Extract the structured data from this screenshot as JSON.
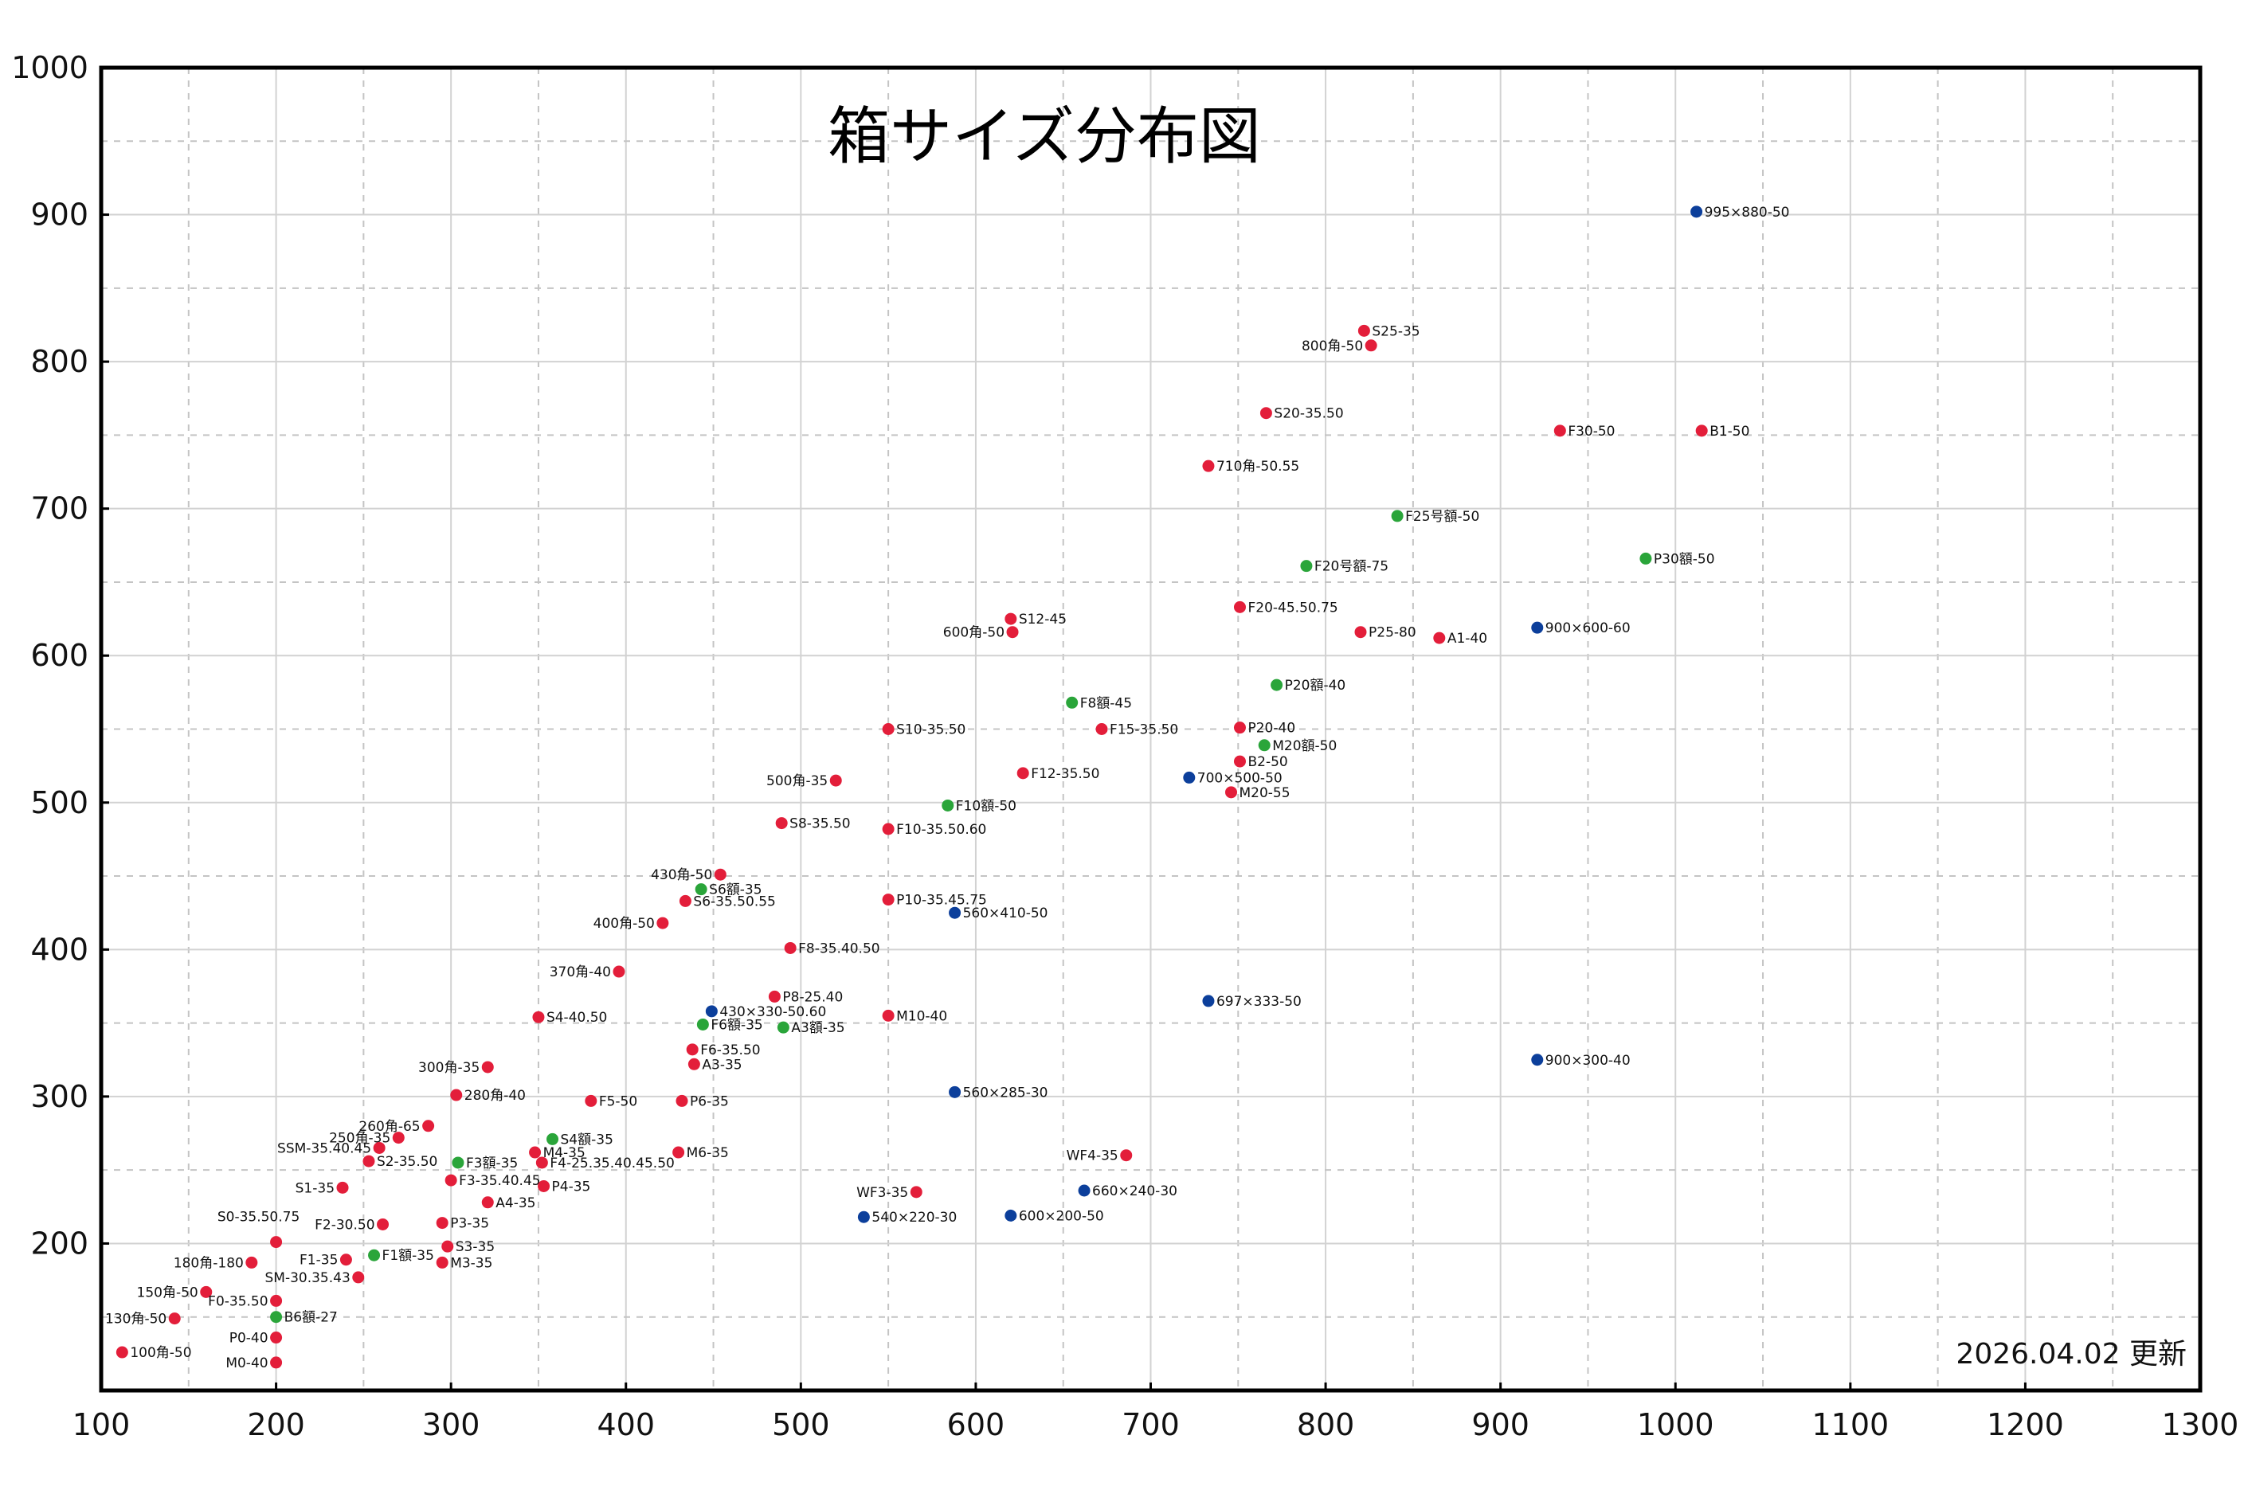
{
  "chart_data": {
    "type": "scatter",
    "title": "箱サイズ分布図",
    "annotation": "2026.04.02 更新",
    "xlabel": "",
    "ylabel": "",
    "xlim": [
      100,
      1300
    ],
    "ylim": [
      100,
      1000
    ],
    "x_ticks": [
      100,
      200,
      300,
      400,
      500,
      600,
      700,
      800,
      900,
      1000,
      1100,
      1200,
      1300
    ],
    "y_ticks": [
      200,
      300,
      400,
      500,
      600,
      700,
      800,
      900,
      1000
    ],
    "grid": "solid every 100, dashed every 50",
    "colors": {
      "red": "#e31e3a",
      "green": "#2aa53a",
      "blue": "#0c3f9b"
    },
    "points": [
      {
        "label": "100角-50",
        "x": 112,
        "y": 126,
        "color": "red",
        "label_pos": "right"
      },
      {
        "label": "130角-50",
        "x": 142,
        "y": 149,
        "color": "red",
        "label_pos": "left"
      },
      {
        "label": "150角-50",
        "x": 160,
        "y": 167,
        "color": "red",
        "label_pos": "left"
      },
      {
        "label": "180角-180",
        "x": 186,
        "y": 187,
        "color": "red",
        "label_pos": "left"
      },
      {
        "label": "S0-35.50.75",
        "x": 200,
        "y": 201,
        "color": "red",
        "label_pos": "above"
      },
      {
        "label": "F0-35.50",
        "x": 200,
        "y": 161,
        "color": "red",
        "label_pos": "left"
      },
      {
        "label": "P0-40",
        "x": 200,
        "y": 136,
        "color": "red",
        "label_pos": "left"
      },
      {
        "label": "M0-40",
        "x": 200,
        "y": 119,
        "color": "red",
        "label_pos": "left"
      },
      {
        "label": "F1-35",
        "x": 240,
        "y": 189,
        "color": "red",
        "label_pos": "left"
      },
      {
        "label": "SM-30.35.43",
        "x": 247,
        "y": 177,
        "color": "red",
        "label_pos": "left"
      },
      {
        "label": "S1-35",
        "x": 238,
        "y": 238,
        "color": "red",
        "label_pos": "left"
      },
      {
        "label": "F2-30.50",
        "x": 261,
        "y": 213,
        "color": "red",
        "label_pos": "left"
      },
      {
        "label": "260角-65",
        "x": 287,
        "y": 280,
        "color": "red",
        "label_pos": "left"
      },
      {
        "label": "250角-35",
        "x": 270,
        "y": 272,
        "color": "red",
        "label_pos": "left"
      },
      {
        "label": "SSM-35.40.45",
        "x": 259,
        "y": 265,
        "color": "red",
        "label_pos": "left"
      },
      {
        "label": "S2-35.50",
        "x": 253,
        "y": 256,
        "color": "red",
        "label_pos": "right"
      },
      {
        "label": "300角-35",
        "x": 321,
        "y": 320,
        "color": "red",
        "label_pos": "left"
      },
      {
        "label": "280角-40",
        "x": 303,
        "y": 301,
        "color": "red",
        "label_pos": "right"
      },
      {
        "label": "F5-50",
        "x": 380,
        "y": 297,
        "color": "red",
        "label_pos": "right"
      },
      {
        "label": "P3-35",
        "x": 295,
        "y": 214,
        "color": "red",
        "label_pos": "right"
      },
      {
        "label": "S3-35",
        "x": 298,
        "y": 198,
        "color": "red",
        "label_pos": "right"
      },
      {
        "label": "M3-35",
        "x": 295,
        "y": 187,
        "color": "red",
        "label_pos": "right"
      },
      {
        "label": "F3-35.40.45",
        "x": 300,
        "y": 243,
        "color": "red",
        "label_pos": "right"
      },
      {
        "label": "A4-35",
        "x": 321,
        "y": 228,
        "color": "red",
        "label_pos": "right"
      },
      {
        "label": "M4-35",
        "x": 348,
        "y": 262,
        "color": "red",
        "label_pos": "right"
      },
      {
        "label": "F4-25.35.40.45.50",
        "x": 352,
        "y": 255,
        "color": "red",
        "label_pos": "right"
      },
      {
        "label": "P4-35",
        "x": 353,
        "y": 239,
        "color": "red",
        "label_pos": "right"
      },
      {
        "label": "M6-35",
        "x": 430,
        "y": 262,
        "color": "red",
        "label_pos": "right"
      },
      {
        "label": "P6-35",
        "x": 432,
        "y": 297,
        "color": "red",
        "label_pos": "right"
      },
      {
        "label": "A3-35",
        "x": 439,
        "y": 322,
        "color": "red",
        "label_pos": "right"
      },
      {
        "label": "F6-35.50",
        "x": 438,
        "y": 332,
        "color": "red",
        "label_pos": "right"
      },
      {
        "label": "S4-40.50",
        "x": 350,
        "y": 354,
        "color": "red",
        "label_pos": "right"
      },
      {
        "label": "370角-40",
        "x": 396,
        "y": 385,
        "color": "red",
        "label_pos": "left"
      },
      {
        "label": "400角-50",
        "x": 421,
        "y": 418,
        "color": "red",
        "label_pos": "left"
      },
      {
        "label": "S6-35.50.55",
        "x": 434,
        "y": 433,
        "color": "red",
        "label_pos": "right"
      },
      {
        "label": "430角-50",
        "x": 454,
        "y": 451,
        "color": "red",
        "label_pos": "left"
      },
      {
        "label": "P8-25.40",
        "x": 485,
        "y": 368,
        "color": "red",
        "label_pos": "right"
      },
      {
        "label": "F8-35.40.50",
        "x": 494,
        "y": 401,
        "color": "red",
        "label_pos": "right"
      },
      {
        "label": "S8-35.50",
        "x": 489,
        "y": 486,
        "color": "red",
        "label_pos": "right"
      },
      {
        "label": "500角-35",
        "x": 520,
        "y": 515,
        "color": "red",
        "label_pos": "left"
      },
      {
        "label": "M10-40",
        "x": 550,
        "y": 355,
        "color": "red",
        "label_pos": "right"
      },
      {
        "label": "P10-35.45.75",
        "x": 550,
        "y": 434,
        "color": "red",
        "label_pos": "right"
      },
      {
        "label": "F10-35.50.60",
        "x": 550,
        "y": 482,
        "color": "red",
        "label_pos": "right"
      },
      {
        "label": "S10-35.50",
        "x": 550,
        "y": 550,
        "color": "red",
        "label_pos": "right"
      },
      {
        "label": "F12-35.50",
        "x": 627,
        "y": 520,
        "color": "red",
        "label_pos": "right"
      },
      {
        "label": "F15-35.50",
        "x": 672,
        "y": 550,
        "color": "red",
        "label_pos": "right"
      },
      {
        "label": "S12-45",
        "x": 620,
        "y": 625,
        "color": "red",
        "label_pos": "right"
      },
      {
        "label": "600角-50",
        "x": 621,
        "y": 616,
        "color": "red",
        "label_pos": "left"
      },
      {
        "label": "WF3-35",
        "x": 566,
        "y": 235,
        "color": "red",
        "label_pos": "left"
      },
      {
        "label": "WF4-35",
        "x": 686,
        "y": 260,
        "color": "red",
        "label_pos": "left"
      },
      {
        "label": "M20-55",
        "x": 746,
        "y": 507,
        "color": "red",
        "label_pos": "right"
      },
      {
        "label": "B2-50",
        "x": 751,
        "y": 528,
        "color": "red",
        "label_pos": "right"
      },
      {
        "label": "P20-40",
        "x": 751,
        "y": 551,
        "color": "red",
        "label_pos": "right"
      },
      {
        "label": "F20-45.50.75",
        "x": 751,
        "y": 633,
        "color": "red",
        "label_pos": "right"
      },
      {
        "label": "P25-80",
        "x": 820,
        "y": 616,
        "color": "red",
        "label_pos": "right"
      },
      {
        "label": "A1-40",
        "x": 865,
        "y": 612,
        "color": "red",
        "label_pos": "right"
      },
      {
        "label": "710角-50.55",
        "x": 733,
        "y": 729,
        "color": "red",
        "label_pos": "right"
      },
      {
        "label": "S20-35.50",
        "x": 766,
        "y": 765,
        "color": "red",
        "label_pos": "right"
      },
      {
        "label": "S25-35",
        "x": 822,
        "y": 821,
        "color": "red",
        "label_pos": "right"
      },
      {
        "label": "800角-50",
        "x": 826,
        "y": 811,
        "color": "red",
        "label_pos": "left"
      },
      {
        "label": "F30-50",
        "x": 934,
        "y": 753,
        "color": "red",
        "label_pos": "right"
      },
      {
        "label": "B1-50",
        "x": 1015,
        "y": 753,
        "color": "red",
        "label_pos": "right"
      },
      {
        "label": "B6額-27",
        "x": 200,
        "y": 150,
        "color": "green",
        "label_pos": "right"
      },
      {
        "label": "F1額-35",
        "x": 256,
        "y": 192,
        "color": "green",
        "label_pos": "right"
      },
      {
        "label": "F3額-35",
        "x": 304,
        "y": 255,
        "color": "green",
        "label_pos": "right"
      },
      {
        "label": "S4額-35",
        "x": 358,
        "y": 271,
        "color": "green",
        "label_pos": "right"
      },
      {
        "label": "F6額-35",
        "x": 444,
        "y": 349,
        "color": "green",
        "label_pos": "right"
      },
      {
        "label": "A3額-35",
        "x": 490,
        "y": 347,
        "color": "green",
        "label_pos": "right"
      },
      {
        "label": "S6額-35",
        "x": 443,
        "y": 441,
        "color": "green",
        "label_pos": "right"
      },
      {
        "label": "F10額-50",
        "x": 584,
        "y": 498,
        "color": "green",
        "label_pos": "right"
      },
      {
        "label": "F8額-45",
        "x": 655,
        "y": 568,
        "color": "green",
        "label_pos": "right"
      },
      {
        "label": "M20額-50",
        "x": 765,
        "y": 539,
        "color": "green",
        "label_pos": "right"
      },
      {
        "label": "P20額-40",
        "x": 772,
        "y": 580,
        "color": "green",
        "label_pos": "right"
      },
      {
        "label": "F20号額-75",
        "x": 789,
        "y": 661,
        "color": "green",
        "label_pos": "right"
      },
      {
        "label": "F25号額-50",
        "x": 841,
        "y": 695,
        "color": "green",
        "label_pos": "right"
      },
      {
        "label": "P30額-50",
        "x": 983,
        "y": 666,
        "color": "green",
        "label_pos": "right"
      },
      {
        "label": "430×330-50.60",
        "x": 449,
        "y": 358,
        "color": "blue",
        "label_pos": "right"
      },
      {
        "label": "560×410-50",
        "x": 588,
        "y": 425,
        "color": "blue",
        "label_pos": "right"
      },
      {
        "label": "560×285-30",
        "x": 588,
        "y": 303,
        "color": "blue",
        "label_pos": "right"
      },
      {
        "label": "540×220-30",
        "x": 536,
        "y": 218,
        "color": "blue",
        "label_pos": "right"
      },
      {
        "label": "600×200-50",
        "x": 620,
        "y": 219,
        "color": "blue",
        "label_pos": "right"
      },
      {
        "label": "660×240-30",
        "x": 662,
        "y": 236,
        "color": "blue",
        "label_pos": "right"
      },
      {
        "label": "697×333-50",
        "x": 733,
        "y": 365,
        "color": "blue",
        "label_pos": "right"
      },
      {
        "label": "700×500-50",
        "x": 722,
        "y": 517,
        "color": "blue",
        "label_pos": "right"
      },
      {
        "label": "900×600-60",
        "x": 921,
        "y": 619,
        "color": "blue",
        "label_pos": "right"
      },
      {
        "label": "900×300-40",
        "x": 921,
        "y": 325,
        "color": "blue",
        "label_pos": "right"
      },
      {
        "label": "995×880-50",
        "x": 1012,
        "y": 902,
        "color": "blue",
        "label_pos": "right"
      }
    ]
  }
}
